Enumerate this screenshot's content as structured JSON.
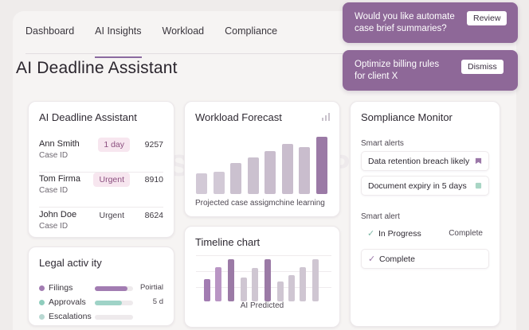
{
  "nav": {
    "tabs": [
      {
        "label": "Dashboard"
      },
      {
        "label": "AI Insights"
      },
      {
        "label": "Workload"
      },
      {
        "label": "Compliance"
      }
    ],
    "active_tab": "AI Insights"
  },
  "page_title": "AI Deadline Assistant",
  "deadline_card": {
    "title": "AI Deadline Assistant",
    "cases": [
      {
        "name": "Ann Smith",
        "sub": "Case ID",
        "badge": "1 day",
        "number": "9257"
      },
      {
        "name": "Tom Firma",
        "sub": "Case ID",
        "badge": "Urgent",
        "number": "8910"
      },
      {
        "name": "John Doe",
        "sub": "Case ID",
        "badge": "Urgent",
        "number": "8624"
      }
    ]
  },
  "legal_card": {
    "title": "Legal activ ity",
    "rows": [
      {
        "label": "Filings",
        "value": "Poirtial",
        "fill": 0.85,
        "color": "#a27cb2"
      },
      {
        "label": "Approvals",
        "value": "5 d",
        "fill": 0.7,
        "color": "#9fd3c7"
      },
      {
        "label": "Escalations",
        "value": "",
        "fill": 0,
        "color": "#c7dcd8"
      }
    ]
  },
  "workload_card": {
    "title": "Workload Forecast",
    "caption": "Projected case assigmchine learning",
    "chart_data": {
      "type": "bar",
      "values": [
        24,
        26,
        36,
        42,
        50,
        58,
        54,
        66
      ],
      "ylim": [
        0,
        70
      ],
      "colors": [
        "#d2c9d6",
        "#d2c9d6",
        "#cbc1cf",
        "#cbc1cf",
        "#c9bdcd",
        "#c9bdcd",
        "#c9bdcd",
        "#9b7aa6"
      ]
    }
  },
  "timeline_card": {
    "title": "Timeline chart",
    "caption": "AI Predicted",
    "chart_data": {
      "type": "bar",
      "values": [
        22,
        34,
        42,
        24,
        33,
        42,
        20,
        26,
        34,
        42
      ],
      "ylim": [
        0,
        46
      ],
      "colors": [
        "#a27cb2",
        "#b995c4",
        "#9b7aa6",
        "#cfc6d2",
        "#cfc6d2",
        "#9b7aa6",
        "#cfc6d2",
        "#cfc6d2",
        "#cfc6d2",
        "#cfc6d2"
      ]
    }
  },
  "compliance_card": {
    "title": "Sompliance Monitor",
    "smart_alerts_label": "Smart alerts",
    "alerts": [
      {
        "text": "Data retention breach likely",
        "flag_color": "#9b78a8"
      },
      {
        "text": "Document expiry in 5 days",
        "flag_color": "#a8d5c4"
      }
    ],
    "smart_alert_label": "Smart alert",
    "statuses": [
      {
        "text": "In Progress",
        "right": "Complete",
        "check_color": "#7fb8a6"
      },
      {
        "text": "Complete",
        "right": "",
        "check_color": "#9b78a8"
      }
    ]
  },
  "notifications": [
    {
      "line1": "Would you like automate",
      "line2": "case brief summaries?",
      "button": "Review"
    },
    {
      "line1": "Optimize billing rules",
      "line2": "for client X",
      "button": "Dismiss"
    }
  ],
  "watermark": "SDLCCORP"
}
